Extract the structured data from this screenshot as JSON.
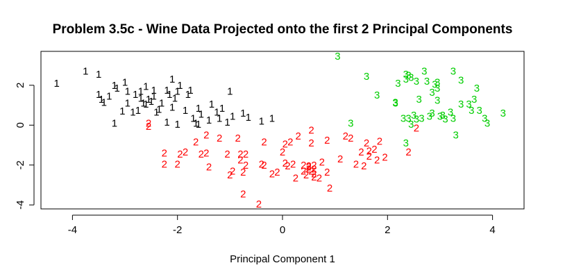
{
  "chart_data": {
    "type": "scatter",
    "title": "Problem 3.5c - Wine Data Projected onto the first 2 Principal Components",
    "xlabel": "Principal Component 1",
    "ylabel": "",
    "xlim": [
      -4.6,
      4.6
    ],
    "ylim": [
      -4.2,
      3.7
    ],
    "x_ticks": [
      -4,
      -2,
      0,
      2,
      4
    ],
    "y_ticks": [
      -4,
      -2,
      0,
      2
    ],
    "grid": false,
    "legend": "none",
    "marker": "class label character",
    "series": [
      {
        "label": "1",
        "color": "#000000",
        "points": [
          [
            -4.3,
            2.1
          ],
          [
            -3.75,
            2.7
          ],
          [
            -3.5,
            2.55
          ],
          [
            -3.5,
            1.55
          ],
          [
            -3.45,
            1.3
          ],
          [
            -3.4,
            1.15
          ],
          [
            -3.3,
            1.45
          ],
          [
            -3.2,
            2.0
          ],
          [
            -3.2,
            0.1
          ],
          [
            -3.15,
            1.85
          ],
          [
            -3.05,
            0.7
          ],
          [
            -3.0,
            2.15
          ],
          [
            -2.95,
            1.1
          ],
          [
            -2.85,
            0.65
          ],
          [
            -2.8,
            1.55
          ],
          [
            -2.75,
            0.75
          ],
          [
            -2.7,
            1.35
          ],
          [
            -2.7,
            1.7
          ],
          [
            -2.65,
            1.1
          ],
          [
            -2.6,
            1.95
          ],
          [
            -2.55,
            1.3
          ],
          [
            -2.5,
            1.2
          ],
          [
            -2.45,
            1.45
          ],
          [
            -2.45,
            1.75
          ],
          [
            -2.4,
            0.65
          ],
          [
            -2.35,
            0.8
          ],
          [
            -2.3,
            1.1
          ],
          [
            -2.2,
            1.75
          ],
          [
            -2.2,
            0.15
          ],
          [
            -2.15,
            1.55
          ],
          [
            -2.1,
            2.3
          ],
          [
            -2.1,
            0.9
          ],
          [
            -2.05,
            1.35
          ],
          [
            -2.0,
            0.05
          ],
          [
            -1.95,
            2.0
          ],
          [
            -1.85,
            0.75
          ],
          [
            -1.8,
            1.55
          ],
          [
            -1.75,
            1.75
          ],
          [
            -1.7,
            0.35
          ],
          [
            -1.65,
            0.1
          ],
          [
            -1.6,
            0.85
          ],
          [
            -1.55,
            0.55
          ],
          [
            -1.4,
            0.25
          ],
          [
            -1.35,
            1.05
          ],
          [
            -1.25,
            0.65
          ],
          [
            -1.2,
            0.35
          ],
          [
            -1.15,
            0.85
          ],
          [
            -1.05,
            0.15
          ],
          [
            -1.0,
            1.7
          ],
          [
            -0.95,
            0.45
          ],
          [
            -0.75,
            0.6
          ],
          [
            -0.65,
            0.4
          ],
          [
            -0.4,
            0.2
          ],
          [
            -0.2,
            0.35
          ],
          [
            -2.0,
            1.7
          ],
          [
            -2.95,
            1.7
          ],
          [
            -2.6,
            1.05
          ],
          [
            -1.6,
            0.05
          ]
        ]
      },
      {
        "label": "2",
        "color": "#ff0000",
        "points": [
          [
            -2.55,
            0.1
          ],
          [
            -2.55,
            -0.05
          ],
          [
            -2.25,
            -1.4
          ],
          [
            -2.25,
            -1.95
          ],
          [
            -2.0,
            -1.95
          ],
          [
            -1.95,
            -1.45
          ],
          [
            -1.85,
            -1.35
          ],
          [
            -1.65,
            -0.85
          ],
          [
            -1.55,
            -1.45
          ],
          [
            -1.45,
            -1.4
          ],
          [
            -1.45,
            -0.5
          ],
          [
            -1.4,
            -2.1
          ],
          [
            -1.2,
            -0.65
          ],
          [
            -1.05,
            -1.45
          ],
          [
            -1.0,
            -2.5
          ],
          [
            -0.95,
            -2.3
          ],
          [
            -0.85,
            -0.65
          ],
          [
            -0.8,
            -1.45
          ],
          [
            -0.8,
            -1.75
          ],
          [
            -0.75,
            -2.35
          ],
          [
            -0.7,
            -2.0
          ],
          [
            -0.7,
            -1.45
          ],
          [
            -0.75,
            -3.45
          ],
          [
            -0.45,
            -3.95
          ],
          [
            -0.4,
            -1.95
          ],
          [
            -0.35,
            -2.0
          ],
          [
            -0.35,
            -0.85
          ],
          [
            -0.2,
            -2.45
          ],
          [
            -0.1,
            -2.35
          ],
          [
            0.0,
            -1.35
          ],
          [
            0.05,
            -0.95
          ],
          [
            0.05,
            -1.9
          ],
          [
            0.1,
            -2.05
          ],
          [
            0.15,
            -0.85
          ],
          [
            0.2,
            -1.95
          ],
          [
            0.25,
            -2.65
          ],
          [
            0.3,
            -0.55
          ],
          [
            0.4,
            -2.0
          ],
          [
            0.4,
            -2.3
          ],
          [
            0.5,
            -2.05
          ],
          [
            0.5,
            -2.2
          ],
          [
            0.55,
            -0.25
          ],
          [
            0.55,
            -0.9
          ],
          [
            0.55,
            -2.3
          ],
          [
            0.6,
            -2.45
          ],
          [
            0.6,
            -2.6
          ],
          [
            0.6,
            -2.0
          ],
          [
            0.7,
            -2.65
          ],
          [
            0.75,
            -1.85
          ],
          [
            0.85,
            -0.75
          ],
          [
            0.85,
            -2.35
          ],
          [
            0.9,
            -3.15
          ],
          [
            1.1,
            -1.7
          ],
          [
            1.2,
            -0.55
          ],
          [
            1.3,
            -0.65
          ],
          [
            1.4,
            -1.95
          ],
          [
            1.5,
            -1.35
          ],
          [
            1.55,
            -2.05
          ],
          [
            1.6,
            -0.9
          ],
          [
            1.65,
            -1.3
          ],
          [
            1.65,
            -1.55
          ],
          [
            1.75,
            -1.2
          ],
          [
            1.8,
            -1.75
          ],
          [
            1.85,
            -0.8
          ],
          [
            1.95,
            -1.6
          ],
          [
            2.4,
            -1.35
          ],
          [
            2.55,
            -0.15
          ],
          [
            0.6,
            -2.2
          ],
          [
            0.5,
            -2.1
          ],
          [
            0.45,
            -2.5
          ]
        ]
      },
      {
        "label": "3",
        "color": "#00cd00",
        "points": [
          [
            1.05,
            3.45
          ],
          [
            1.3,
            0.1
          ],
          [
            1.6,
            2.45
          ],
          [
            1.8,
            1.5
          ],
          [
            2.15,
            1.1
          ],
          [
            2.15,
            1.15
          ],
          [
            2.2,
            2.1
          ],
          [
            2.3,
            0.35
          ],
          [
            2.35,
            2.3
          ],
          [
            2.35,
            2.55
          ],
          [
            2.4,
            0.35
          ],
          [
            2.4,
            2.5
          ],
          [
            2.45,
            2.4
          ],
          [
            2.5,
            0.5
          ],
          [
            2.55,
            2.2
          ],
          [
            2.6,
            1.3
          ],
          [
            2.65,
            0.35
          ],
          [
            2.7,
            2.7
          ],
          [
            2.75,
            2.2
          ],
          [
            2.8,
            0.45
          ],
          [
            2.85,
            1.65
          ],
          [
            2.9,
            2.05
          ],
          [
            2.95,
            1.85
          ],
          [
            2.95,
            2.15
          ],
          [
            2.95,
            1.25
          ],
          [
            3.0,
            0.45
          ],
          [
            3.05,
            0.5
          ],
          [
            3.1,
            0.3
          ],
          [
            3.2,
            0.65
          ],
          [
            3.25,
            0.35
          ],
          [
            3.25,
            2.7
          ],
          [
            3.4,
            1.05
          ],
          [
            3.4,
            2.25
          ],
          [
            3.55,
            1.05
          ],
          [
            3.6,
            0.75
          ],
          [
            3.65,
            1.3
          ],
          [
            3.7,
            1.85
          ],
          [
            3.75,
            0.75
          ],
          [
            3.85,
            0.35
          ],
          [
            3.9,
            0.1
          ],
          [
            4.2,
            0.6
          ],
          [
            2.45,
            0.05
          ],
          [
            2.35,
            -0.9
          ],
          [
            3.3,
            -0.5
          ],
          [
            2.85,
            0.6
          ],
          [
            2.55,
            0.3
          ]
        ]
      }
    ]
  }
}
